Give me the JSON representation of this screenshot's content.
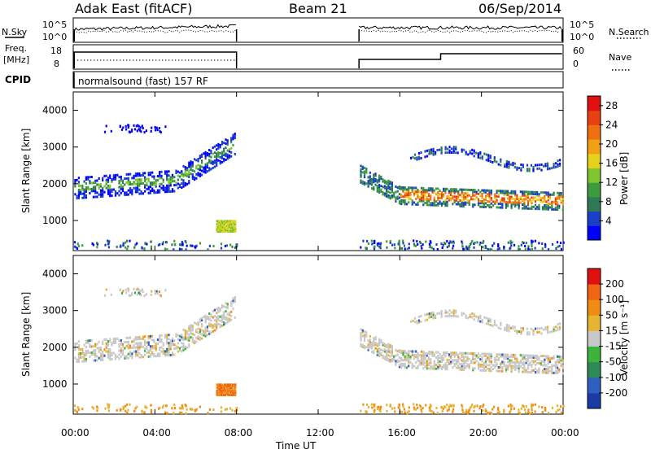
{
  "header": {
    "station": "Adak East (fitACF)",
    "beam": "Beam 21",
    "date": "06/Sep/2014"
  },
  "labels": {
    "nsky": "N.Sky",
    "nsearch": "N.Search",
    "freq": "Freq.",
    "freq_unit": "[MHz]",
    "nave": "Nave",
    "cpid": "CPID",
    "program": "normalsound (fast) 157 RF",
    "slant_range": "Slant Range [km]",
    "time_axis": "Time UT",
    "power_cb": "Power [dB]",
    "velocity_cb": "Velocity [m s⁻¹]"
  },
  "noise_ticks": {
    "left_top": "10^5",
    "left_bot": "10^0",
    "right_top": "10^5",
    "right_bot": "10^0"
  },
  "freq_ticks": {
    "left_top": "18",
    "left_bot": "8",
    "right_top": "60",
    "right_bot": "0"
  },
  "colors": {
    "power": [
      "#0000ff",
      "#1a3fc8",
      "#2f7a55",
      "#3c9b3c",
      "#7fc431",
      "#e6d21a",
      "#f2a014",
      "#f07010",
      "#e84010",
      "#e01010"
    ],
    "velocity": [
      "#1a3aa8",
      "#2f5fc0",
      "#2e8b57",
      "#3cb43c",
      "#c8c8c8",
      "#e6b432",
      "#f08c14",
      "#f06414",
      "#e01010"
    ]
  },
  "chart_data": [
    {
      "type": "heatmap",
      "title": "Power",
      "xlabel": "Time UT",
      "ylabel": "Slant Range [km]",
      "x_ticks": [
        "00:00",
        "04:00",
        "08:00",
        "12:00",
        "16:00",
        "20:00",
        "00:00"
      ],
      "y_ticks": [
        "1000",
        "2000",
        "3000",
        "4000"
      ],
      "xlim": [
        "00:00",
        "24:00"
      ],
      "ylim": [
        180,
        4500
      ],
      "colorbar_label": "Power [dB]",
      "colorbar_ticks": [
        "4",
        "8",
        "12",
        "16",
        "20",
        "24",
        "28"
      ],
      "colorbar_range": [
        0,
        30
      ],
      "data_gap": [
        "08:00",
        "14:00"
      ]
    },
    {
      "type": "heatmap",
      "title": "Velocity",
      "xlabel": "Time UT",
      "ylabel": "Slant Range [km]",
      "x_ticks": [
        "00:00",
        "04:00",
        "08:00",
        "12:00",
        "16:00",
        "20:00",
        "00:00"
      ],
      "y_ticks": [
        "1000",
        "2000",
        "3000",
        "4000"
      ],
      "xlim": [
        "00:00",
        "24:00"
      ],
      "ylim": [
        180,
        4500
      ],
      "colorbar_label": "Velocity [m s⁻¹]",
      "colorbar_ticks": [
        "200",
        "100",
        "50",
        "15",
        "-15",
        "-50",
        "-100",
        "-200"
      ],
      "colorbar_range": [
        -250,
        250
      ],
      "data_gap": [
        "08:00",
        "14:00"
      ]
    }
  ]
}
